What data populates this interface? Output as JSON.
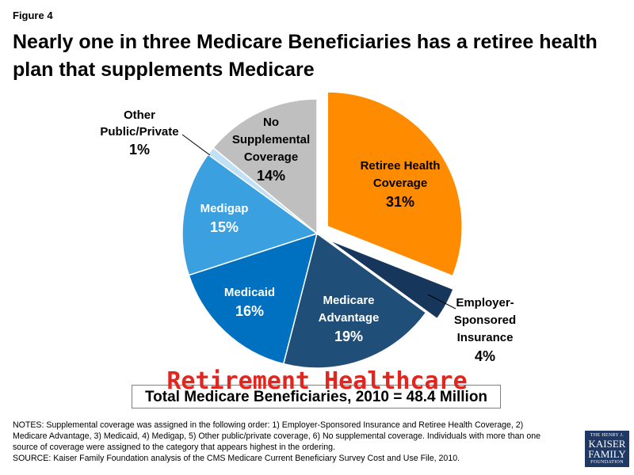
{
  "figure_label": "Figure 4",
  "title": "Nearly one in three Medicare Beneficiaries has a retiree health plan that supplements Medicare",
  "total_label": "Total Medicare Beneficiaries, 2010 = 48.4 Million",
  "watermark": "Retirement Healthcare",
  "notes": {
    "line1": "NOTES: Supplemental coverage was assigned in the following order: 1) Employer-Sponsored Insurance and Retiree Health Coverage, 2)",
    "line2": "Medicare Advantage, 3) Medicaid, 4) Medigap, 5) Other public/private coverage, 6) No supplemental coverage.  Individuals with more than one",
    "line3": "source of coverage were assigned to the category that appears highest in the ordering.",
    "line4": "SOURCE: Kaiser Family Foundation analysis of the CMS Medicare Current Beneficiary Survey Cost and Use File, 2010."
  },
  "logo": {
    "line1": "THE HENRY J.",
    "line2": "KAISER",
    "line3": "FAMILY",
    "line4": "FOUNDATION"
  },
  "chart_data": {
    "type": "pie",
    "unit": "%",
    "slices": [
      {
        "name": "Retiree Health Coverage",
        "lines": [
          "Retiree Health",
          "Coverage"
        ],
        "value": 31,
        "label": "31%",
        "color": "#ff8c00",
        "exploded": true,
        "text_color": "#000000"
      },
      {
        "name": "Employer-Sponsored Insurance",
        "lines": [
          "Employer-",
          "Sponsored",
          "Insurance"
        ],
        "value": 4,
        "label": "4%",
        "color": "#16365c",
        "exploded": true,
        "text_color": "#000000",
        "outside": true
      },
      {
        "name": "Medicare Advantage",
        "lines": [
          "Medicare",
          "Advantage"
        ],
        "value": 19,
        "label": "19%",
        "color": "#1f4e79",
        "text_color": "#ffffff"
      },
      {
        "name": "Medicaid",
        "lines": [
          "Medicaid"
        ],
        "value": 16,
        "label": "16%",
        "color": "#0070c0",
        "text_color": "#ffffff"
      },
      {
        "name": "Medigap",
        "lines": [
          "Medigap"
        ],
        "value": 15,
        "label": "15%",
        "color": "#3aa0e0",
        "text_color": "#ffffff"
      },
      {
        "name": "Other Public/Private",
        "lines": [
          "Other",
          "Public/Private"
        ],
        "value": 1,
        "label": "1%",
        "color": "#bfe0f5",
        "text_color": "#000000",
        "outside": true
      },
      {
        "name": "No Supplemental Coverage",
        "lines": [
          "No",
          "Supplemental",
          "Coverage"
        ],
        "value": 14,
        "label": "14%",
        "color": "#bfbfbf",
        "text_color": "#000000"
      }
    ]
  }
}
